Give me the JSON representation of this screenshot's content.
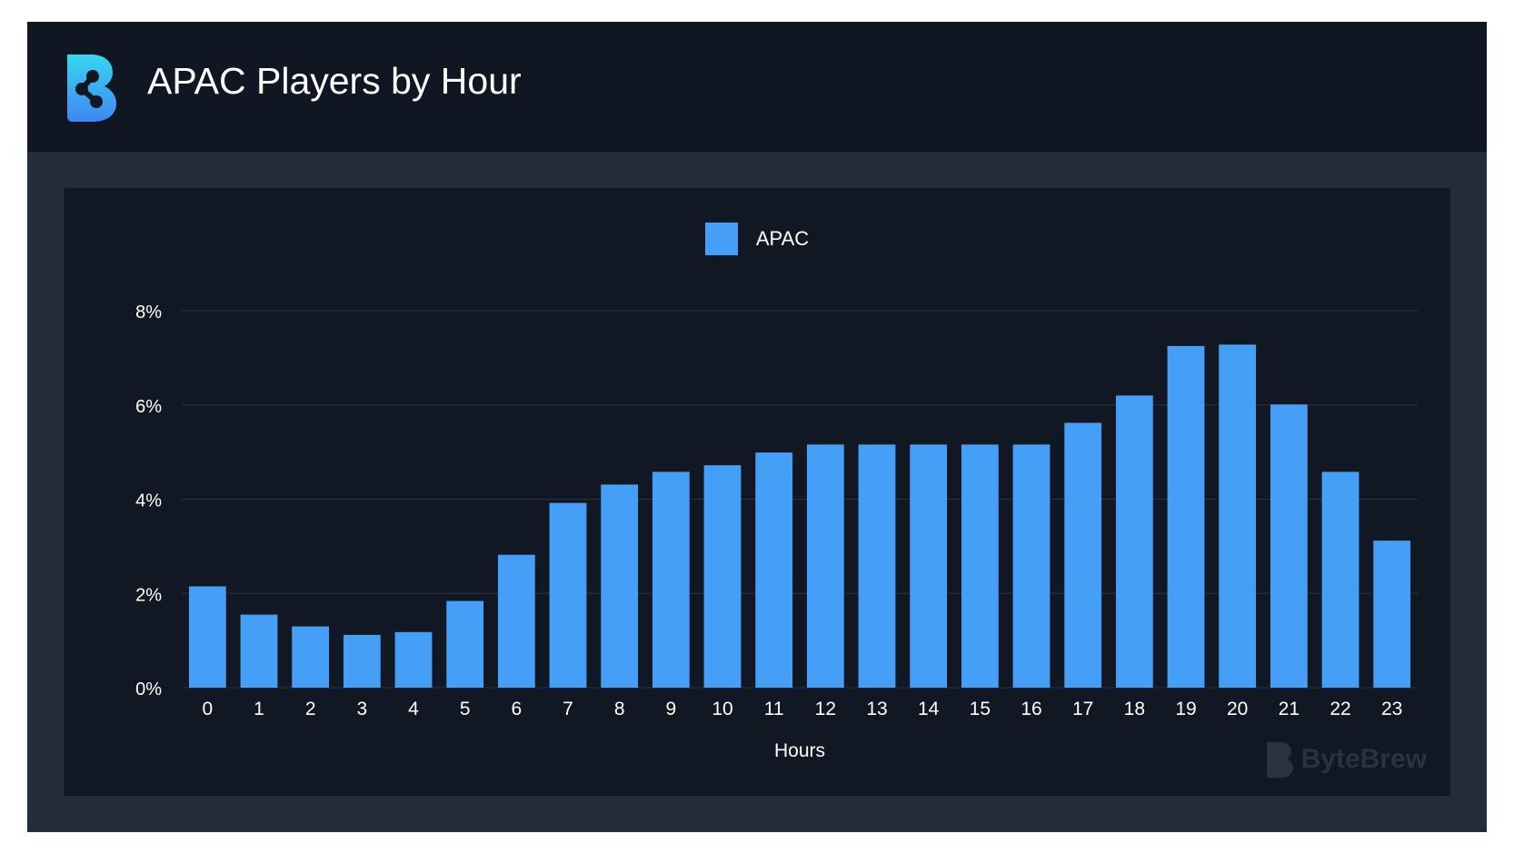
{
  "header": {
    "title": "APAC Players by Hour",
    "logo_icon": "bytebrew-logo-icon"
  },
  "watermark": {
    "text": "ByteBrew"
  },
  "colors": {
    "bar": "#469ff7",
    "grid": "#2a3240",
    "panel": "#121823",
    "header": "#111722",
    "frame": "#232c3a"
  },
  "chart_data": {
    "type": "bar",
    "title": "APAC Players by Hour",
    "xlabel": "Hours",
    "ylabel": "",
    "ylim": [
      0,
      8
    ],
    "yticks": [
      "0%",
      "2%",
      "4%",
      "6%",
      "8%"
    ],
    "legend": {
      "position": "top-center"
    },
    "grid": true,
    "categories": [
      "0",
      "1",
      "2",
      "3",
      "4",
      "5",
      "6",
      "7",
      "8",
      "9",
      "10",
      "11",
      "12",
      "13",
      "14",
      "15",
      "16",
      "17",
      "18",
      "19",
      "20",
      "21",
      "22",
      "23"
    ],
    "series": [
      {
        "name": "APAC",
        "values": [
          2.15,
          1.55,
          1.3,
          1.12,
          1.18,
          1.84,
          2.82,
          3.92,
          4.31,
          4.58,
          4.72,
          4.99,
          5.16,
          5.16,
          5.16,
          5.16,
          5.16,
          5.62,
          6.2,
          7.25,
          7.28,
          6.01,
          4.58,
          3.12
        ]
      }
    ]
  }
}
